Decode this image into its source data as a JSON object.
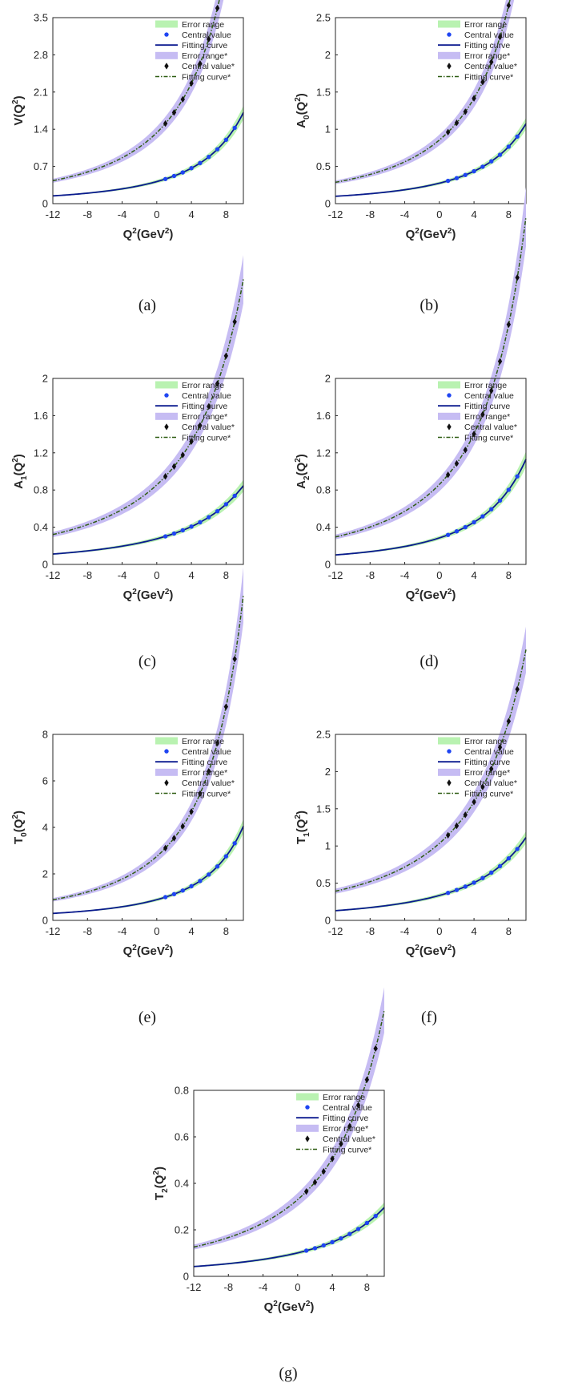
{
  "colors": {
    "error_band": "#b9f2b1",
    "error_band_star": "#c6bcf3",
    "central_dot": "#1f45f2",
    "fit_curve": "#0b1a8f",
    "star_marker": "#111111",
    "fit_curve_star": "#2e5d12",
    "axis": "#262626"
  },
  "legend": [
    "Error range",
    "Central value",
    "Fitting curve",
    "Error range*",
    "Central value*",
    "Fitting curve*"
  ],
  "chart_data": [
    {
      "type": "line",
      "panel": "a",
      "caption": "(a)",
      "ylabel_base": "V",
      "xlabel": "Q2(GeV2)",
      "xlim": [
        -12,
        10
      ],
      "ylim": [
        0,
        3.5
      ],
      "xticks": [
        "-12",
        "-8",
        "-4",
        "0",
        "4",
        "8"
      ],
      "yticks": [
        "0",
        "0.7",
        "1.4",
        "2.1",
        "2.8",
        "3.5"
      ],
      "series": [
        {
          "name": "Fitting curve",
          "f0": 0.415,
          "m2": 23.1,
          "n": 2.5,
          "band": 0.075
        },
        {
          "name": "Fitting curve*",
          "f0": 1.335,
          "m2": 21.0,
          "n": 2.5,
          "band": 0.085
        }
      ]
    },
    {
      "type": "line",
      "panel": "b",
      "caption": "(b)",
      "ylabel_base": "A0",
      "xlabel": "Q2(GeV2)",
      "xlim": [
        -12,
        10
      ],
      "ylim": [
        0,
        2.5
      ],
      "xticks": [
        "-12",
        "-8",
        "-4",
        "0",
        "4",
        "8"
      ],
      "yticks": [
        "0",
        "0.5",
        "1",
        "1.5",
        "2",
        "2.5"
      ],
      "series": [
        {
          "name": "Fitting curve",
          "f0": 0.275,
          "m2": 23.8,
          "n": 2.5,
          "band": 0.075
        },
        {
          "name": "Fitting curve*",
          "f0": 0.855,
          "m2": 21.9,
          "n": 2.5,
          "band": 0.085
        }
      ]
    },
    {
      "type": "line",
      "panel": "c",
      "caption": "(c)",
      "ylabel_base": "A1",
      "xlabel": "Q2(GeV2)",
      "xlim": [
        -12,
        10
      ],
      "ylim": [
        0,
        2
      ],
      "xticks": [
        "-12",
        "-8",
        "-4",
        "0",
        "4",
        "8"
      ],
      "yticks": [
        "0",
        "0.4",
        "0.8",
        "1.2",
        "1.6",
        "2"
      ],
      "series": [
        {
          "name": "Fitting curve",
          "f0": 0.275,
          "m2": 27.6,
          "n": 2.5,
          "band": 0.075
        },
        {
          "name": "Fitting curve*",
          "f0": 0.855,
          "m2": 25.0,
          "n": 2.5,
          "band": 0.085
        }
      ]
    },
    {
      "type": "line",
      "panel": "d",
      "caption": "(d)",
      "ylabel_base": "A2",
      "xlabel": "Q2(GeV2)",
      "xlim": [
        -12,
        10
      ],
      "ylim": [
        0,
        2
      ],
      "xticks": [
        "-12",
        "-8",
        "-4",
        "0",
        "4",
        "8"
      ],
      "yticks": [
        "0",
        "0.4",
        "0.8",
        "1.2",
        "1.6",
        "2"
      ],
      "series": [
        {
          "name": "Fitting curve",
          "f0": 0.285,
          "m2": 23.6,
          "n": 2.5,
          "band": 0.075
        },
        {
          "name": "Fitting curve*",
          "f0": 0.86,
          "m2": 22.5,
          "n": 2.5,
          "band": 0.085
        }
      ]
    },
    {
      "type": "line",
      "panel": "e",
      "caption": "(e)",
      "ylabel_base": "T0",
      "xlabel": "Q2(GeV2)",
      "xlim": [
        -12,
        10
      ],
      "ylim": [
        0,
        8
      ],
      "xticks": [
        "-12",
        "-8",
        "-4",
        "0",
        "4",
        "8"
      ],
      "yticks": [
        "0",
        "2",
        "4",
        "6",
        "8"
      ],
      "series": [
        {
          "name": "Fitting curve",
          "f0": 0.89,
          "m2": 22.0,
          "n": 2.5,
          "band": 0.075
        },
        {
          "name": "Fitting curve*",
          "f0": 2.75,
          "m2": 20.9,
          "n": 2.5,
          "band": 0.085
        }
      ]
    },
    {
      "type": "line",
      "panel": "f",
      "caption": "(f)",
      "ylabel_base": "T1",
      "xlabel": "Q2(GeV2)",
      "xlim": [
        -12,
        10
      ],
      "ylim": [
        0,
        2.5
      ],
      "xticks": [
        "-12",
        "-8",
        "-4",
        "0",
        "4",
        "8"
      ],
      "yticks": [
        "0",
        "0.5",
        "1",
        "1.5",
        "2",
        "2.5"
      ],
      "series": [
        {
          "name": "Fitting curve",
          "f0": 0.335,
          "m2": 26.2,
          "n": 2.5,
          "band": 0.075
        },
        {
          "name": "Fitting curve*",
          "f0": 1.035,
          "m2": 25.3,
          "n": 2.5,
          "band": 0.085
        }
      ]
    },
    {
      "type": "line",
      "panel": "g",
      "caption": "(g)",
      "ylabel_base": "T2",
      "xlabel": "Q2(GeV2)",
      "xlim": [
        -12,
        10
      ],
      "ylim": [
        0,
        0.8
      ],
      "xticks": [
        "-12",
        "-8",
        "-4",
        "0",
        "4",
        "8"
      ],
      "yticks": [
        "0",
        "0.2",
        "0.4",
        "0.6",
        "0.8"
      ],
      "series": [
        {
          "name": "Fitting curve",
          "f0": 0.101,
          "m2": 28.6,
          "n": 2.5,
          "band": 0.075
        },
        {
          "name": "Fitting curve*",
          "f0": 0.33,
          "m2": 25.5,
          "n": 2.5,
          "band": 0.085
        }
      ]
    }
  ],
  "central_points_q2": [
    1,
    2,
    3,
    4,
    5,
    6,
    7,
    8,
    9
  ]
}
